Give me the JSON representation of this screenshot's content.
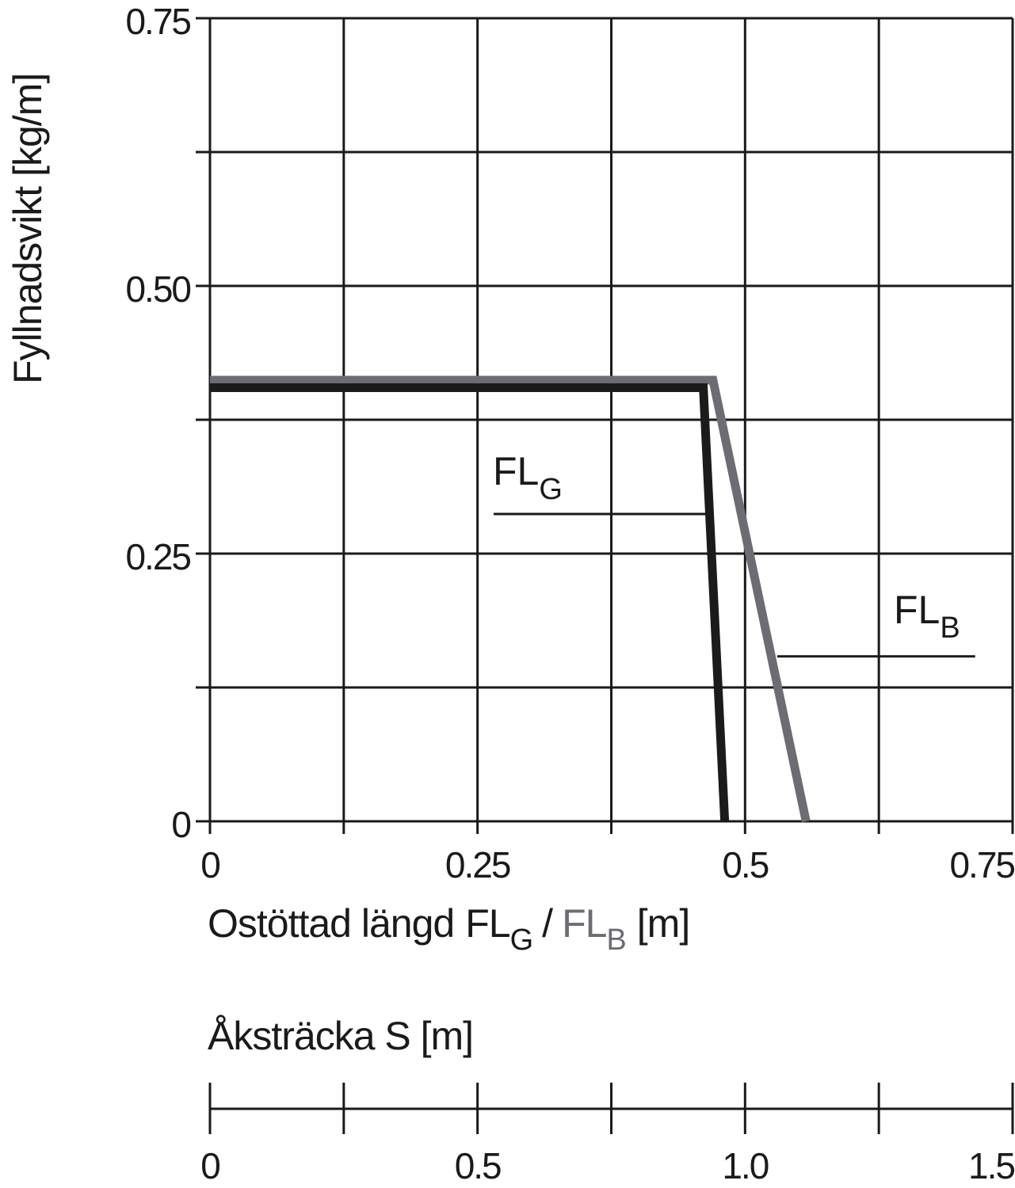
{
  "chart_data": {
    "type": "line",
    "title": "",
    "xlabel": "Ostöttad längd FL_G / FL_B [m]",
    "xlabel_parts": {
      "prefix": "Ostöttad längd",
      "fl_g_main": "FL",
      "fl_g_sub": "G",
      "separator": "/",
      "fl_b_main": "FL",
      "fl_b_sub": "B",
      "unit": "[m]"
    },
    "ylabel": "Fyllnadsvikt [kg/m]",
    "xlim": [
      0,
      0.75
    ],
    "ylim": [
      0,
      0.75
    ],
    "x_ticks": [
      0,
      0.125,
      0.25,
      0.375,
      0.5,
      0.625,
      0.75
    ],
    "x_tick_labels": [
      "0",
      "",
      "0.25",
      "",
      "0.5",
      "",
      "0.75"
    ],
    "y_ticks": [
      0,
      0.125,
      0.25,
      0.375,
      0.5,
      0.625,
      0.75
    ],
    "y_tick_labels": [
      "0",
      "",
      "0.25",
      "",
      "0.50",
      "",
      "0.75"
    ],
    "grid": true,
    "series": [
      {
        "name": "FL_G",
        "label_main": "FL",
        "label_sub": "G",
        "color": "#1c1a1b",
        "points": [
          [
            0,
            0.405
          ],
          [
            0.461,
            0.405
          ],
          [
            0.481,
            0
          ]
        ]
      },
      {
        "name": "FL_B",
        "label_main": "FL",
        "label_sub": "B",
        "color": "#6b6d72",
        "points": [
          [
            0,
            0.412
          ],
          [
            0.47,
            0.412
          ],
          [
            0.557,
            0
          ]
        ]
      }
    ],
    "annotations": [
      {
        "text": "FL_G",
        "leader_y": 0.287,
        "leader_x": [
          0.265,
          0.465
        ]
      },
      {
        "text": "FL_B",
        "leader_y": 0.154,
        "leader_x": [
          0.53,
          0.715
        ]
      }
    ],
    "secondary_axis": {
      "label": "Åksträcka S [m]",
      "range": [
        0,
        1.5
      ],
      "ticks": [
        0,
        0.25,
        0.5,
        0.75,
        1.0,
        1.25,
        1.5
      ],
      "tick_labels": [
        "0",
        "",
        "0.5",
        "",
        "1.0",
        "",
        "1.5"
      ]
    }
  }
}
